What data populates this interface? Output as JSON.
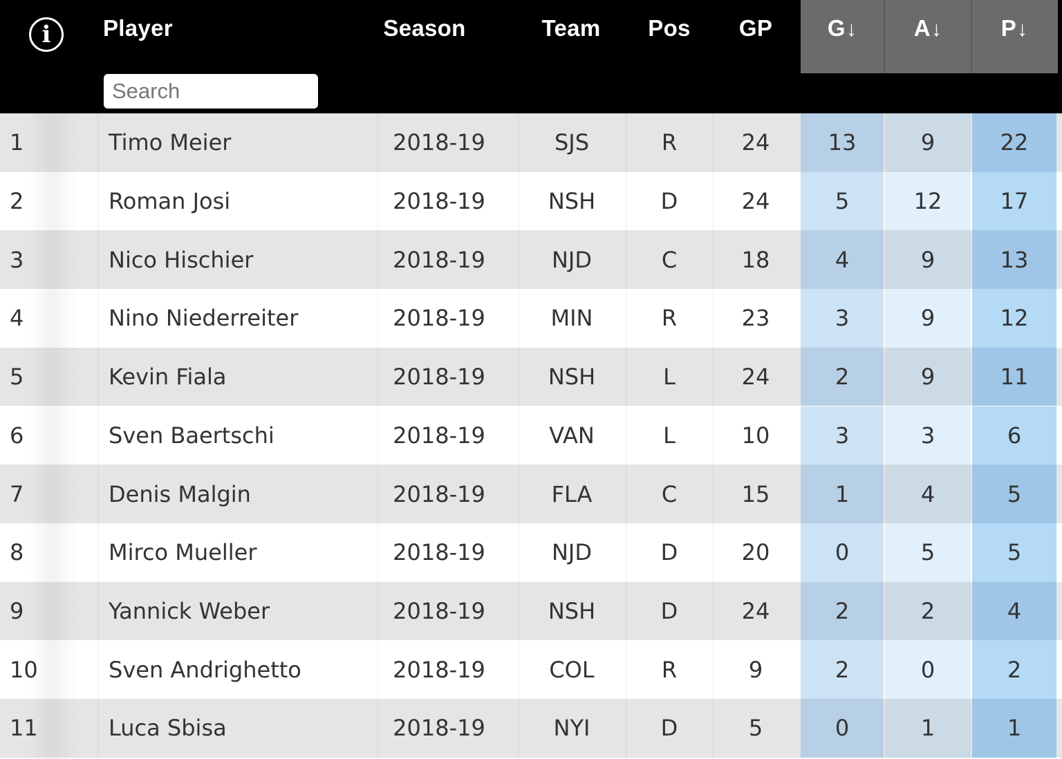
{
  "header": {
    "info_icon_glyph": "i",
    "columns": {
      "player": "Player",
      "season": "Season",
      "team": "Team",
      "pos": "Pos",
      "gp": "GP",
      "g": "G",
      "a": "A",
      "p": "P"
    },
    "sort_arrow": "↓",
    "search_placeholder": "Search"
  },
  "colors": {
    "header_bg": "#000000",
    "sorted_header_bg": "#6b6b6b",
    "row_odd": "#e5e5e5",
    "row_even": "#ffffff",
    "g_odd": "#b8d0e6",
    "g_even": "#cce3f5",
    "a_odd": "#ccdae6",
    "a_even": "#e2f0fb",
    "p_odd": "#9fc6e6",
    "p_even": "#b4daf5"
  },
  "rows": [
    {
      "rank": "1",
      "player": "Timo Meier",
      "season": "2018-19",
      "team": "SJS",
      "pos": "R",
      "gp": "24",
      "g": "13",
      "a": "9",
      "p": "22"
    },
    {
      "rank": "2",
      "player": "Roman Josi",
      "season": "2018-19",
      "team": "NSH",
      "pos": "D",
      "gp": "24",
      "g": "5",
      "a": "12",
      "p": "17"
    },
    {
      "rank": "3",
      "player": "Nico Hischier",
      "season": "2018-19",
      "team": "NJD",
      "pos": "C",
      "gp": "18",
      "g": "4",
      "a": "9",
      "p": "13"
    },
    {
      "rank": "4",
      "player": "Nino Niederreiter",
      "season": "2018-19",
      "team": "MIN",
      "pos": "R",
      "gp": "23",
      "g": "3",
      "a": "9",
      "p": "12"
    },
    {
      "rank": "5",
      "player": "Kevin Fiala",
      "season": "2018-19",
      "team": "NSH",
      "pos": "L",
      "gp": "24",
      "g": "2",
      "a": "9",
      "p": "11"
    },
    {
      "rank": "6",
      "player": "Sven Baertschi",
      "season": "2018-19",
      "team": "VAN",
      "pos": "L",
      "gp": "10",
      "g": "3",
      "a": "3",
      "p": "6"
    },
    {
      "rank": "7",
      "player": "Denis Malgin",
      "season": "2018-19",
      "team": "FLA",
      "pos": "C",
      "gp": "15",
      "g": "1",
      "a": "4",
      "p": "5"
    },
    {
      "rank": "8",
      "player": "Mirco Mueller",
      "season": "2018-19",
      "team": "NJD",
      "pos": "D",
      "gp": "20",
      "g": "0",
      "a": "5",
      "p": "5"
    },
    {
      "rank": "9",
      "player": "Yannick Weber",
      "season": "2018-19",
      "team": "NSH",
      "pos": "D",
      "gp": "24",
      "g": "2",
      "a": "2",
      "p": "4"
    },
    {
      "rank": "10",
      "player": "Sven Andrighetto",
      "season": "2018-19",
      "team": "COL",
      "pos": "R",
      "gp": "9",
      "g": "2",
      "a": "0",
      "p": "2"
    },
    {
      "rank": "11",
      "player": "Luca Sbisa",
      "season": "2018-19",
      "team": "NYI",
      "pos": "D",
      "gp": "5",
      "g": "0",
      "a": "1",
      "p": "1"
    }
  ]
}
